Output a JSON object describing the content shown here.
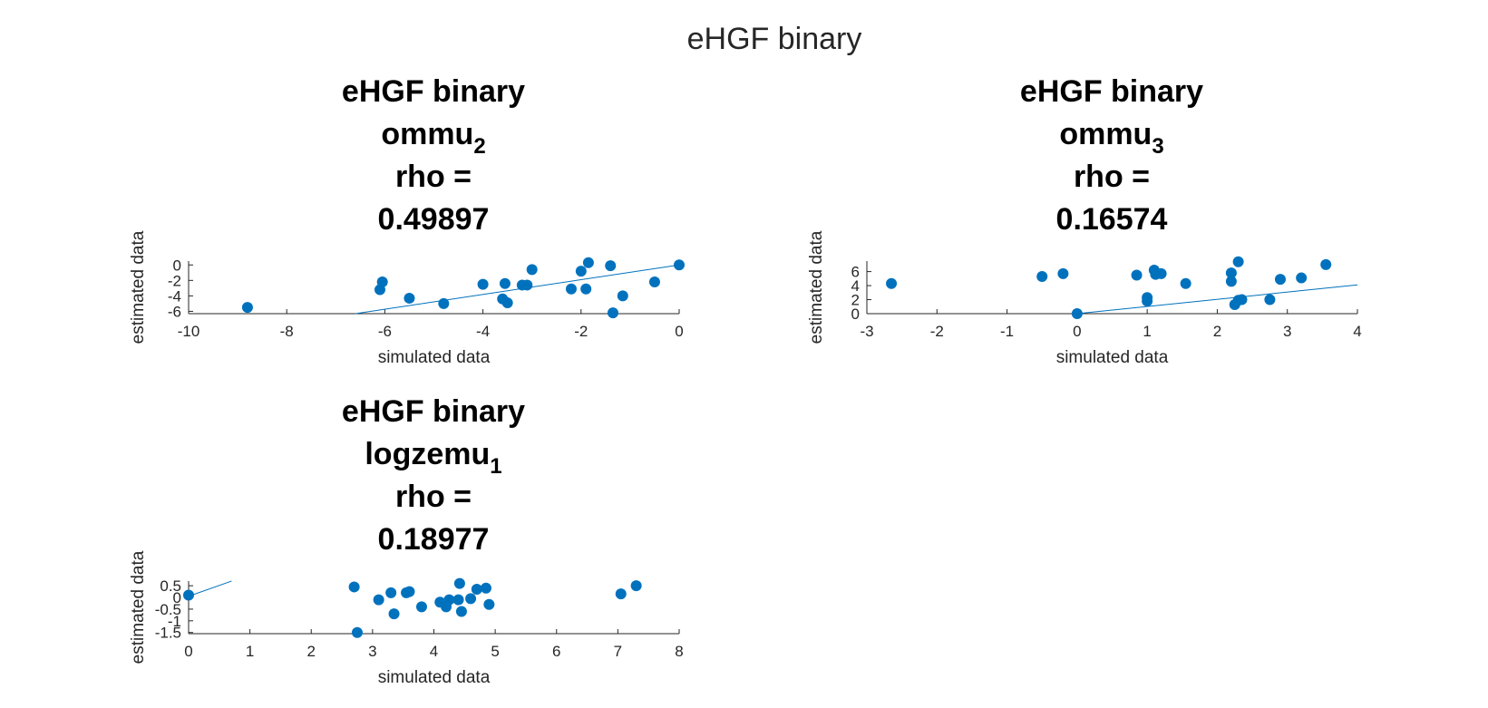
{
  "figure_title": "eHGF binary",
  "colors": {
    "points": "#0072BD",
    "fit_line": "#0072BD",
    "axis": "#262626"
  },
  "chart_data": [
    {
      "type": "scatter",
      "title": [
        "eHGF binary",
        "ommu",
        "rho =",
        "0.49897"
      ],
      "title_subscript": "2",
      "xlabel": "simulated data",
      "ylabel": "estimated data",
      "xlim": [
        -10,
        0
      ],
      "ylim": [
        -6.3,
        0.5
      ],
      "xticks": [
        -10,
        -8,
        -6,
        -4,
        -2,
        0
      ],
      "yticks": [
        -6,
        -4,
        -2,
        0
      ],
      "points": [
        [
          -8.8,
          -5.5
        ],
        [
          -6.1,
          -3.2
        ],
        [
          -6.05,
          -2.2
        ],
        [
          -5.5,
          -4.3
        ],
        [
          -4.8,
          -5.0
        ],
        [
          -4.0,
          -2.5
        ],
        [
          -3.6,
          -4.4
        ],
        [
          -3.55,
          -2.4
        ],
        [
          -3.5,
          -4.9
        ],
        [
          -3.2,
          -2.6
        ],
        [
          -3.1,
          -2.6
        ],
        [
          -3.0,
          -0.6
        ],
        [
          -2.2,
          -3.1
        ],
        [
          -2.0,
          -0.8
        ],
        [
          -1.9,
          -3.1
        ],
        [
          -1.85,
          0.3
        ],
        [
          -1.4,
          -0.1
        ],
        [
          -1.35,
          -6.2
        ],
        [
          -1.15,
          -4.0
        ],
        [
          -0.5,
          -2.2
        ],
        [
          0.0,
          0.0
        ]
      ],
      "fit_line": {
        "x": [
          -6.6,
          0
        ],
        "y": [
          -6.3,
          0.0
        ]
      }
    },
    {
      "type": "scatter",
      "title": [
        "eHGF binary",
        "ommu",
        "rho =",
        "0.16574"
      ],
      "title_subscript": "3",
      "xlabel": "simulated data",
      "ylabel": "estimated data",
      "xlim": [
        -3,
        4
      ],
      "ylim": [
        0,
        7.5
      ],
      "xticks": [
        -3,
        -2,
        -1,
        0,
        1,
        2,
        3,
        4
      ],
      "yticks": [
        0,
        2,
        4,
        6
      ],
      "points": [
        [
          -2.65,
          4.3
        ],
        [
          -0.5,
          5.3
        ],
        [
          -0.2,
          5.7
        ],
        [
          0.0,
          0.0
        ],
        [
          0.85,
          5.5
        ],
        [
          1.0,
          2.3
        ],
        [
          1.0,
          1.8
        ],
        [
          1.1,
          6.2
        ],
        [
          1.12,
          5.6
        ],
        [
          1.2,
          5.7
        ],
        [
          1.55,
          4.3
        ],
        [
          2.2,
          5.8
        ],
        [
          2.2,
          4.6
        ],
        [
          2.25,
          1.3
        ],
        [
          2.3,
          7.4
        ],
        [
          2.3,
          1.9
        ],
        [
          2.35,
          2.0
        ],
        [
          2.75,
          2.0
        ],
        [
          2.9,
          4.9
        ],
        [
          3.2,
          5.1
        ],
        [
          3.55,
          7.0
        ]
      ],
      "fit_line": {
        "x": [
          0,
          4
        ],
        "y": [
          0.0,
          4.1
        ]
      }
    },
    {
      "type": "scatter",
      "title": [
        "eHGF binary",
        "logzemu",
        "rho =",
        "0.18977"
      ],
      "title_subscript": "1",
      "xlabel": "simulated data",
      "ylabel": "estimated data",
      "xlim": [
        0,
        8
      ],
      "ylim": [
        -1.55,
        0.7
      ],
      "xticks": [
        0,
        1,
        2,
        3,
        4,
        5,
        6,
        7,
        8
      ],
      "yticks": [
        -1.5,
        -1,
        -0.5,
        0,
        0.5
      ],
      "ytick_labels": [
        "-1.5",
        "-1",
        "-0.5",
        "0",
        "0.5"
      ],
      "points": [
        [
          0.0,
          0.1
        ],
        [
          2.7,
          0.45
        ],
        [
          2.75,
          -1.5
        ],
        [
          3.1,
          -0.1
        ],
        [
          3.3,
          0.2
        ],
        [
          3.35,
          -0.7
        ],
        [
          3.55,
          0.2
        ],
        [
          3.6,
          0.25
        ],
        [
          3.8,
          -0.4
        ],
        [
          4.1,
          -0.2
        ],
        [
          4.2,
          -0.4
        ],
        [
          4.25,
          -0.1
        ],
        [
          4.4,
          -0.1
        ],
        [
          4.42,
          0.6
        ],
        [
          4.45,
          -0.6
        ],
        [
          4.6,
          -0.05
        ],
        [
          4.7,
          0.35
        ],
        [
          4.85,
          0.4
        ],
        [
          4.9,
          -0.3
        ],
        [
          7.05,
          0.15
        ],
        [
          7.3,
          0.5
        ]
      ],
      "fit_line": {
        "x": [
          0,
          0.7
        ],
        "y": [
          0.05,
          0.7
        ]
      }
    }
  ]
}
